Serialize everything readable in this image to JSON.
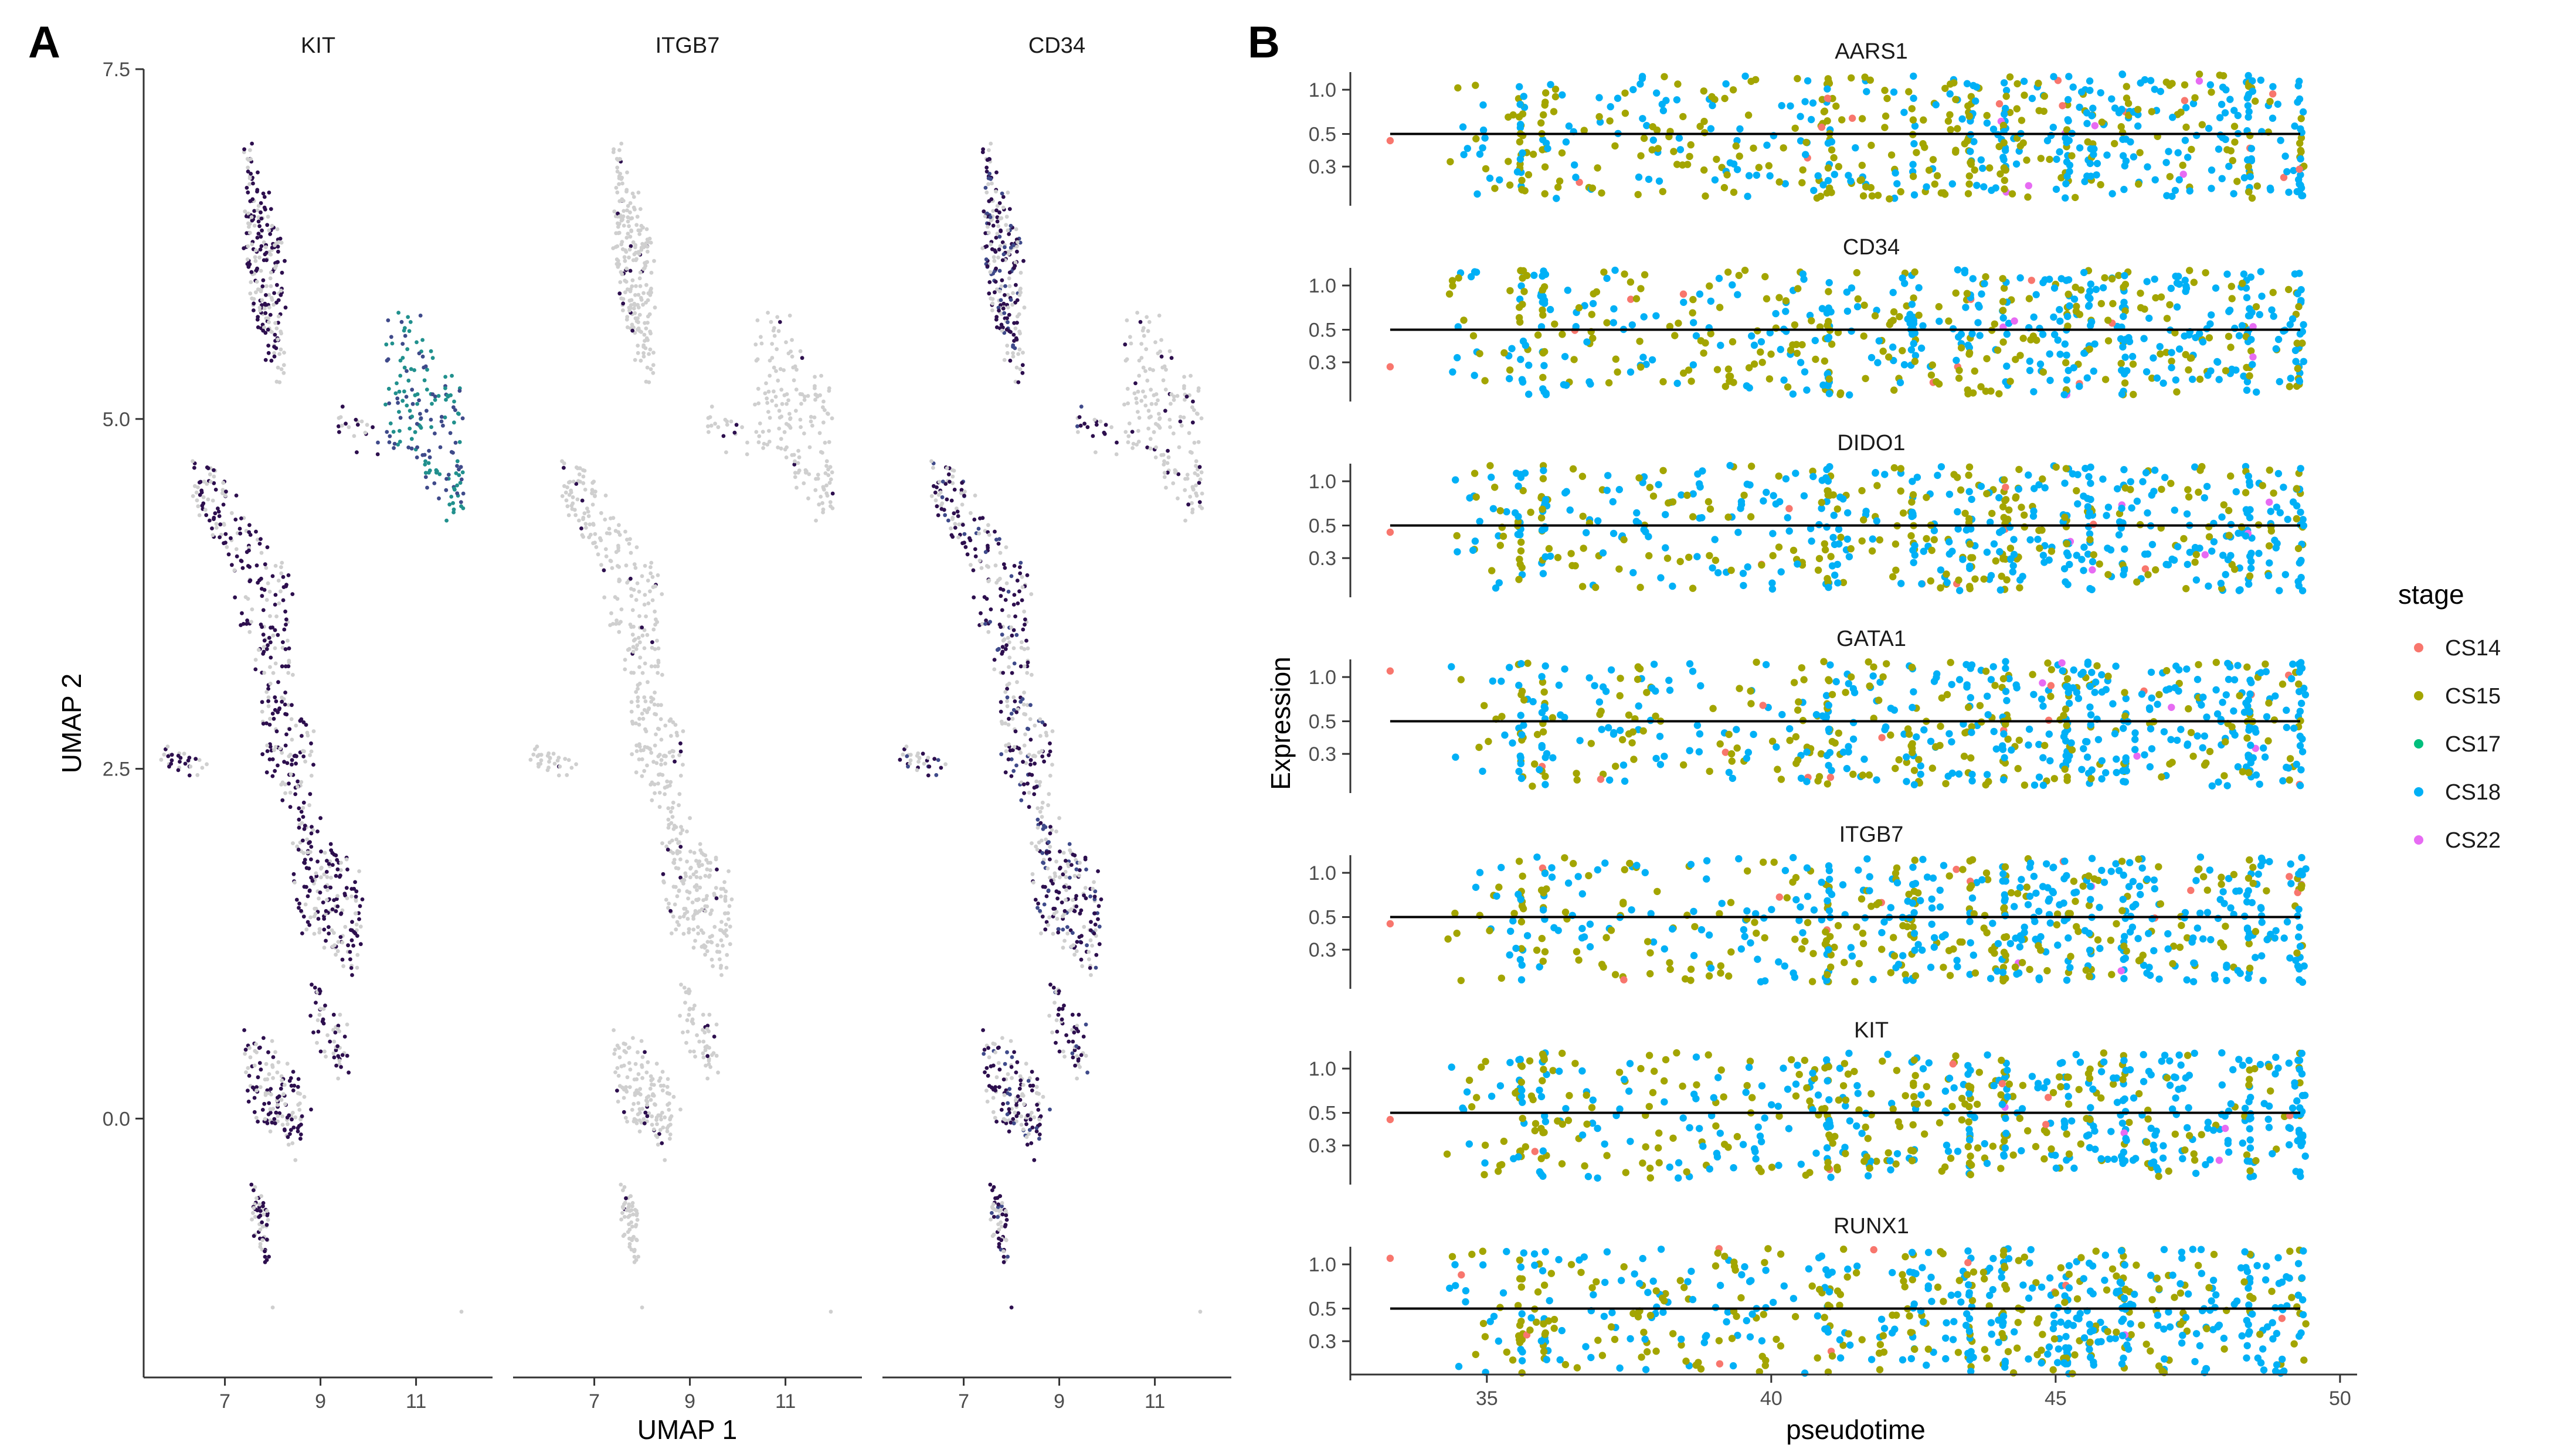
{
  "panel_labels": {
    "a": "A",
    "b": "B"
  },
  "colors": {
    "umap_grey": "#cfcfcf",
    "umap_low": "#2d0f4e",
    "umap_mid": "#3f4a8a",
    "umap_high": "#21908d",
    "trend_line": "#000000",
    "axis": "#333333",
    "tick_label": "#4d4d4d"
  },
  "chart_data": [
    {
      "type": "scatter",
      "panel": "A",
      "facets": [
        "KIT",
        "ITGB7",
        "CD34"
      ],
      "xlabel": "UMAP 1",
      "ylabel": "UMAP 2",
      "xlim": [
        5.3,
        12.6
      ],
      "ylim": [
        -1.85,
        7.5
      ],
      "xticks": [
        7,
        9,
        11
      ],
      "xtick_labels": [
        "7",
        "9",
        "11"
      ],
      "yticks": [
        0,
        2.5,
        5,
        7.5
      ],
      "ytick_labels": [
        "0.0",
        "2.5",
        "5.0",
        "7.5"
      ],
      "color_scale": "viridis (expression)",
      "points_per_facet": 1200,
      "grid": false
    },
    {
      "type": "scatter",
      "panel": "B",
      "facets": [
        "AARS1",
        "CD34",
        "DIDO1",
        "GATA1",
        "ITGB7",
        "KIT",
        "RUNX1"
      ],
      "xlabel": "pseudotime",
      "ylabel": "Expression",
      "xlim": [
        32.6,
        50.3
      ],
      "xticks": [
        35,
        40,
        45,
        50
      ],
      "xtick_labels": [
        "35",
        "40",
        "45",
        "50"
      ],
      "y_scale": "log",
      "ylim": [
        0.17,
        1.38
      ],
      "yticks": [
        0.3,
        0.5,
        1.0
      ],
      "ytick_labels": [
        "0.3",
        "0.5",
        "1.0"
      ],
      "trend_line_value": 0.5,
      "grid": false,
      "legend": {
        "title": "stage",
        "placement": "right",
        "entries": [
          {
            "label": "CS14",
            "color": "#f8766d"
          },
          {
            "label": "CS15",
            "color": "#a3a500"
          },
          {
            "label": "CS17",
            "color": "#00bf7d"
          },
          {
            "label": "CS18",
            "color": "#00b0f6"
          },
          {
            "label": "CS22",
            "color": "#e76bf3"
          }
        ]
      },
      "points_per_facet": 650
    }
  ]
}
